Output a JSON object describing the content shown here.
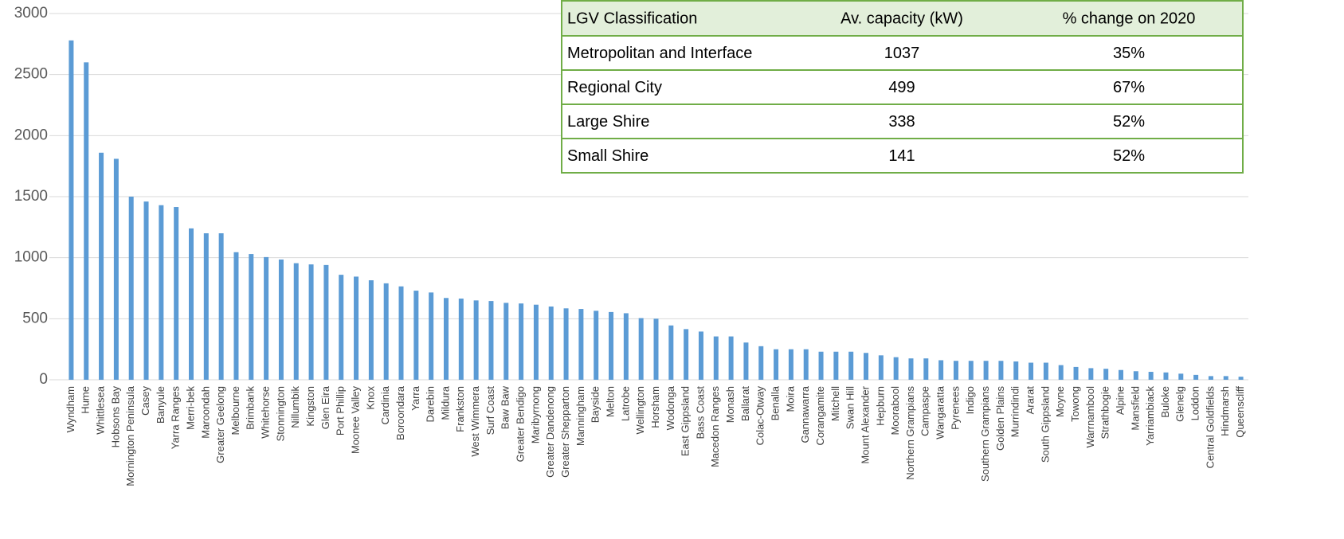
{
  "chart_data": {
    "type": "bar",
    "categories": [
      "Wyndham",
      "Hume",
      "Whittlesea",
      "Hobsons Bay",
      "Mornington Peninsula",
      "Casey",
      "Banyule",
      "Yarra Ranges",
      "Merri-bek",
      "Maroondah",
      "Greater Geelong",
      "Melbourne",
      "Brimbank",
      "Whitehorse",
      "Stonnington",
      "Nillumbik",
      "Kingston",
      "Glen Eira",
      "Port Phillip",
      "Moonee Valley",
      "Knox",
      "Cardinia",
      "Boroondara",
      "Yarra",
      "Darebin",
      "Mildura",
      "Frankston",
      "West Wimmera",
      "Surf Coast",
      "Baw Baw",
      "Greater Bendigo",
      "Maribyrnong",
      "Greater Dandenong",
      "Greater Shepparton",
      "Manningham",
      "Bayside",
      "Melton",
      "Latrobe",
      "Wellington",
      "Horsham",
      "Wodonga",
      "East Gippsland",
      "Bass Coast",
      "Macedon Ranges",
      "Monash",
      "Ballarat",
      "Colac-Otway",
      "Benalla",
      "Moira",
      "Gannawarra",
      "Corangamite",
      "Mitchell",
      "Swan Hill",
      "Mount Alexander",
      "Hepburn",
      "Moorabool",
      "Northern Grampians",
      "Campaspe",
      "Wangaratta",
      "Pyrenees",
      "Indigo",
      "Southern Grampians",
      "Golden Plains",
      "Murrindindi",
      "Ararat",
      "South Gippsland",
      "Moyne",
      "Towong",
      "Warrnambool",
      "Strathbogie",
      "Alpine",
      "Mansfield",
      "Yarriambiack",
      "Buloke",
      "Glenelg",
      "Loddon",
      "Central Goldfields",
      "Hindmarsh",
      "Queenscliff"
    ],
    "values": [
      2780,
      2600,
      1860,
      1810,
      1500,
      1460,
      1430,
      1415,
      1240,
      1200,
      1200,
      1045,
      1030,
      1005,
      985,
      955,
      945,
      940,
      860,
      845,
      815,
      790,
      765,
      730,
      715,
      670,
      665,
      650,
      645,
      630,
      625,
      615,
      600,
      585,
      580,
      565,
      555,
      545,
      505,
      500,
      445,
      415,
      395,
      355,
      355,
      305,
      275,
      250,
      250,
      250,
      230,
      230,
      230,
      220,
      200,
      185,
      175,
      175,
      160,
      155,
      155,
      155,
      155,
      150,
      140,
      140,
      120,
      105,
      95,
      90,
      80,
      70,
      65,
      60,
      50,
      40,
      30,
      30,
      25
    ],
    "color": "#5b9bd5",
    "ylim": [
      0,
      3000
    ],
    "yticks": [
      0,
      500,
      1000,
      1500,
      2000,
      2500,
      3000
    ],
    "grid": true
  },
  "table": {
    "header": [
      "LGV Classification",
      "Av. capacity (kW)",
      "% change on 2020"
    ],
    "rows": [
      [
        "Metropolitan and Interface",
        "1037",
        "35%"
      ],
      [
        "Regional City",
        "499",
        "67%"
      ],
      [
        "Large Shire",
        "338",
        "52%"
      ],
      [
        "Small Shire",
        "141",
        "52%"
      ]
    ]
  }
}
